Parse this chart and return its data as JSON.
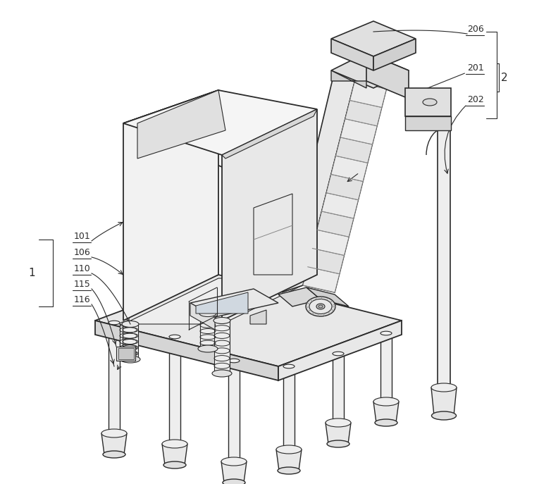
{
  "background_color": "#ffffff",
  "line_color": "#2a2a2a",
  "figsize": [
    7.82,
    6.87
  ],
  "dpi": 100,
  "face_light": "#f5f5f5",
  "face_mid": "#e8e8e8",
  "face_dark": "#d5d5d5",
  "face_side": "#ebebeb"
}
